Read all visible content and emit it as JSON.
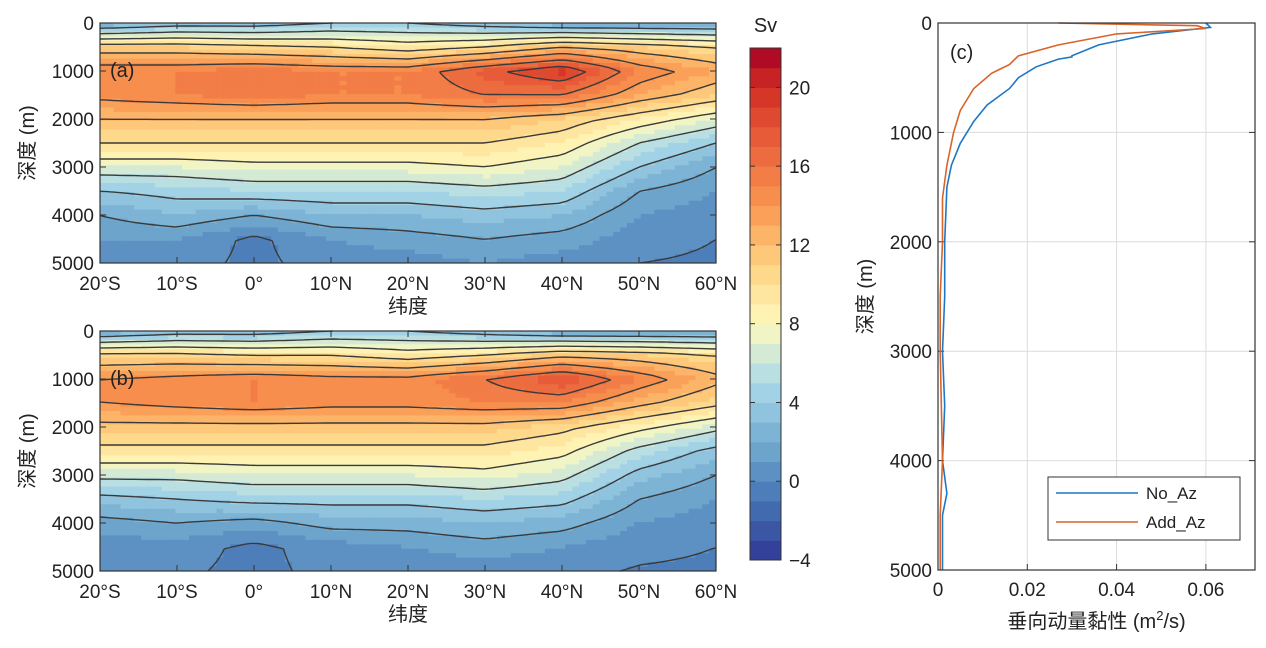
{
  "chart_data": [
    {
      "type": "heatmap",
      "panel_label": "(a)",
      "xlabel": "纬度",
      "ylabel": "深度 (m)",
      "xlim": [
        -20,
        60
      ],
      "ylim": [
        5000,
        0
      ],
      "xticks": [
        -20,
        -10,
        0,
        10,
        20,
        30,
        40,
        50,
        60
      ],
      "xtick_labels": [
        "20°S",
        "10°S",
        "0°",
        "10°N",
        "20°N",
        "30°N",
        "40°N",
        "50°N",
        "60°N"
      ],
      "yticks": [
        0,
        1000,
        2000,
        3000,
        4000,
        5000
      ],
      "ytick_labels": [
        "0",
        "1000",
        "2000",
        "3000",
        "4000",
        "5000"
      ],
      "contour_levels": [
        0,
        2,
        4,
        6,
        8,
        10,
        12,
        14,
        16,
        18,
        20
      ],
      "lat": [
        -20,
        -10,
        0,
        10,
        20,
        30,
        40,
        50,
        60
      ],
      "depth": [
        0,
        500,
        1000,
        1500,
        2000,
        2500,
        3000,
        3500,
        4000,
        4500,
        5000
      ],
      "values": [
        [
          2,
          3,
          3,
          4,
          4,
          3,
          2,
          2,
          2
        ],
        [
          11,
          11,
          10.5,
          10,
          9,
          10,
          12,
          11,
          10
        ],
        [
          15,
          15,
          15.5,
          15,
          15,
          17.5,
          19.5,
          15,
          13
        ],
        [
          14.5,
          15,
          15.5,
          15,
          15,
          16,
          16,
          13,
          11
        ],
        [
          12,
          12,
          12,
          12,
          12,
          12,
          11,
          9,
          7
        ],
        [
          10,
          10,
          10,
          10,
          10,
          10,
          9,
          6,
          4
        ],
        [
          7,
          7,
          7.5,
          7.5,
          7.5,
          8,
          7,
          4,
          2
        ],
        [
          4,
          4.5,
          5,
          5,
          5,
          5.5,
          5,
          2,
          1
        ],
        [
          2,
          3,
          2,
          3,
          3,
          3.5,
          3,
          1,
          0.5
        ],
        [
          1,
          1,
          -0.3,
          1,
          1.5,
          2,
          1.5,
          0.5,
          0
        ],
        [
          0.5,
          0.5,
          -0.3,
          0.5,
          0.5,
          1,
          0.5,
          0,
          -0.2
        ]
      ]
    },
    {
      "type": "heatmap",
      "panel_label": "(b)",
      "xlabel": "纬度",
      "ylabel": "深度 (m)",
      "xlim": [
        -20,
        60
      ],
      "ylim": [
        5000,
        0
      ],
      "xticks": [
        -20,
        -10,
        0,
        10,
        20,
        30,
        40,
        50,
        60
      ],
      "xtick_labels": [
        "20°S",
        "10°S",
        "0°",
        "10°N",
        "20°N",
        "30°N",
        "40°N",
        "50°N",
        "60°N"
      ],
      "yticks": [
        0,
        1000,
        2000,
        3000,
        4000,
        5000
      ],
      "ytick_labels": [
        "0",
        "1000",
        "2000",
        "3000",
        "4000",
        "5000"
      ],
      "contour_levels": [
        0,
        2,
        4,
        6,
        8,
        10,
        12,
        14,
        16,
        18,
        20
      ],
      "lat": [
        -20,
        -10,
        0,
        10,
        20,
        30,
        40,
        50,
        60
      ],
      "depth": [
        0,
        500,
        1000,
        1500,
        2000,
        2500,
        3000,
        3500,
        4000,
        4500,
        5000
      ],
      "values": [
        [
          2,
          3,
          3,
          4,
          4,
          3,
          2,
          2,
          2
        ],
        [
          10.5,
          10.5,
          10,
          10,
          9,
          10,
          11.5,
          11,
          10
        ],
        [
          14,
          14.5,
          15,
          14.5,
          14.5,
          16,
          18,
          15,
          12.5
        ],
        [
          14,
          14.5,
          15,
          14.5,
          14.5,
          15,
          15,
          12.5,
          10.5
        ],
        [
          11.5,
          11.5,
          11.5,
          11.5,
          11.5,
          11.5,
          10.5,
          8.5,
          6.5
        ],
        [
          9.5,
          9.5,
          9.5,
          9.5,
          9.5,
          9.5,
          8.5,
          5.5,
          3.5
        ],
        [
          6.5,
          6.5,
          7,
          7,
          7,
          7.5,
          6.5,
          3.5,
          2
        ],
        [
          3.5,
          4,
          4.5,
          4.5,
          4.5,
          5,
          4.5,
          2,
          1
        ],
        [
          1.5,
          2,
          1.5,
          2.5,
          2.5,
          3,
          2.5,
          1,
          0.5
        ],
        [
          0.5,
          0.5,
          -0.3,
          0.5,
          1,
          1.5,
          1,
          0.3,
          0
        ],
        [
          0.3,
          0.2,
          -0.3,
          0.3,
          0.3,
          0.5,
          0.3,
          -0.1,
          -0.2
        ]
      ]
    },
    {
      "type": "colorbar",
      "title": "Sv",
      "range": [
        -4,
        22
      ],
      "ticks": [
        -4,
        0,
        4,
        8,
        12,
        16,
        20
      ],
      "tick_labels": [
        "−4",
        "0",
        "4",
        "8",
        "12",
        "16",
        "20"
      ]
    },
    {
      "type": "line",
      "panel_label": "(c)",
      "xlabel_main": "垂向动量黏性 (m",
      "xlabel_sup": "2",
      "xlabel_tail": "/s)",
      "ylabel": "深度 (m)",
      "xlim": [
        0,
        0.071
      ],
      "ylim": [
        5000,
        0
      ],
      "grid": true,
      "legend_position": "bottom-right",
      "xticks": [
        0,
        0.02,
        0.04,
        0.06
      ],
      "xtick_labels": [
        "0",
        "0.02",
        "0.04",
        "0.06"
      ],
      "yticks": [
        0,
        1000,
        2000,
        3000,
        4000,
        5000
      ],
      "ytick_labels": [
        "0",
        "1000",
        "2000",
        "3000",
        "4000",
        "5000"
      ],
      "series": [
        {
          "name": "No_Az",
          "color": "#1f77c4",
          "points": [
            [
              0.06,
              0
            ],
            [
              0.061,
              40
            ],
            [
              0.048,
              100
            ],
            [
              0.036,
              200
            ],
            [
              0.03,
              300
            ],
            [
              0.03,
              310
            ],
            [
              0.027,
              330
            ],
            [
              0.022,
              400
            ],
            [
              0.018,
              500
            ],
            [
              0.017,
              550
            ],
            [
              0.016,
              600
            ],
            [
              0.011,
              750
            ],
            [
              0.008,
              900
            ],
            [
              0.005,
              1100
            ],
            [
              0.003,
              1300
            ],
            [
              0.002,
              1500
            ],
            [
              0.0015,
              2000
            ],
            [
              0.0015,
              2500
            ],
            [
              0.001,
              3000
            ],
            [
              0.0015,
              3500
            ],
            [
              0.001,
              4000
            ],
            [
              0.002,
              4300
            ],
            [
              0.001,
              4500
            ],
            [
              0.001,
              5000
            ]
          ]
        },
        {
          "name": "Add_Az",
          "color": "#d9642a",
          "points": [
            [
              0.027,
              0
            ],
            [
              0.058,
              25
            ],
            [
              0.06,
              50
            ],
            [
              0.04,
              100
            ],
            [
              0.027,
              200
            ],
            [
              0.018,
              300
            ],
            [
              0.016,
              380
            ],
            [
              0.014,
              420
            ],
            [
              0.012,
              460
            ],
            [
              0.008,
              600
            ],
            [
              0.005,
              800
            ],
            [
              0.0035,
              1000
            ],
            [
              0.002,
              1300
            ],
            [
              0.001,
              1600
            ],
            [
              0.001,
              2000
            ],
            [
              0.0005,
              2500
            ],
            [
              0.0005,
              3000
            ],
            [
              0.001,
              4000
            ],
            [
              0.0005,
              4500
            ],
            [
              0.0005,
              5000
            ]
          ]
        }
      ]
    }
  ]
}
